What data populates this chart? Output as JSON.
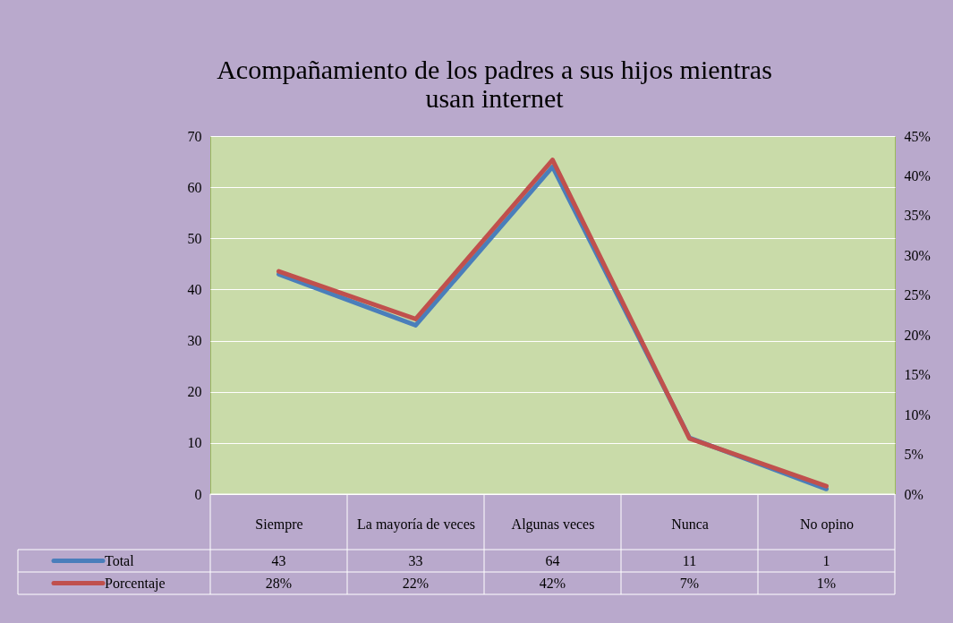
{
  "chart_data": {
    "type": "line",
    "title": "Acompañamiento de los padres a sus hijos mientras usan internet",
    "categories": [
      "Siempre",
      "La mayoría de veces",
      "Algunas veces",
      "Nunca",
      "No opino"
    ],
    "series": [
      {
        "name": "Total",
        "color": "#4a7ebb",
        "values": [
          43,
          33,
          64,
          11,
          1
        ],
        "value_labels": [
          "43",
          "33",
          "64",
          "11",
          "1"
        ]
      },
      {
        "name": "Porcentaje",
        "color": "#c0504d",
        "axis": "y2",
        "values": [
          28,
          22,
          42,
          7,
          1
        ],
        "value_labels": [
          "28%",
          "22%",
          "42%",
          "7%",
          "1%"
        ]
      }
    ],
    "ylim": [
      0,
      70
    ],
    "yticks": [
      0,
      10,
      20,
      30,
      40,
      50,
      60,
      70
    ],
    "y2lim": [
      0,
      45
    ],
    "y2ticks": [
      {
        "value": 0,
        "label": "0%"
      },
      {
        "value": 5,
        "label": "5%"
      },
      {
        "value": 10,
        "label": "10%"
      },
      {
        "value": 15,
        "label": "15%"
      },
      {
        "value": 20,
        "label": "20%"
      },
      {
        "value": 25,
        "label": "25%"
      },
      {
        "value": 30,
        "label": "30%"
      },
      {
        "value": 35,
        "label": "35%"
      },
      {
        "value": 40,
        "label": "40%"
      },
      {
        "value": 45,
        "label": "45%"
      }
    ],
    "grid": "y",
    "legend": "bottom left"
  }
}
